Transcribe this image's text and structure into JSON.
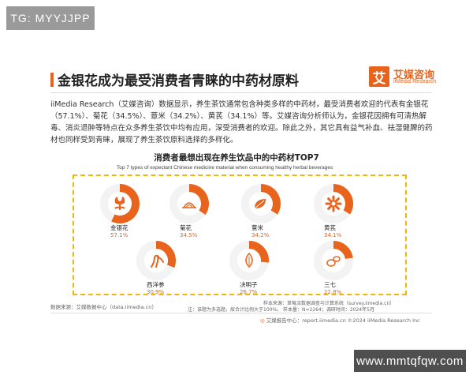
{
  "watermark_top": "TG: MYYJJPP",
  "watermark_bottom": "www.mmtqfqw.com",
  "title": "金银花成为最受消费者青睐的中药材原料",
  "logo": {
    "mark": "艾",
    "name_cn": "艾媒咨询",
    "name_en": "iiMedia Research"
  },
  "paragraph": "iiMedia Research（艾媒咨询）数据显示，养生茶饮通常包含种类多样的中药材，最受消费者欢迎的代表有金银花（57.1%）、菊花（34.5%）、薏米（34.2%）、黄芪（34.1%）等。艾媒咨询分析师认为，金银花因拥有可清热解毒、消炎退肿等特点在众多养生茶饮中均有应用，深受消费者的欢迎。除此之外，其它具有益气补血、祛湿健脾的药材也同样受到青睐，展现了养生茶饮原料选择的多样化。",
  "source_left": "数据来源：艾媒数据中心（data.iimedia.cn）",
  "source_right_1": "样本来源：草莓派数据调查与计算系统（survey.iimedia.cn）",
  "source_right_2": "注：该题为多选题，故合计比例大于100%。  样本量：N=2264；调研时间：2024年5月",
  "footer": {
    "label": "艾媒报告中心：report.iimedia.cn",
    "copyright": "©2024  iiMedia Research Inc"
  },
  "colors": {
    "accent": "#e8631b",
    "frame": "#f2b705",
    "track": "#f3f3f3"
  },
  "chart_data": {
    "type": "ring",
    "title": "消费者最想出现在养生饮品中的中药材TOP7",
    "subtitle": "Top 7 types of expectant Chinese medicine material when consuming healthy herbal beverages",
    "unit": "%",
    "items": [
      {
        "label": "金银花",
        "value": 57.1,
        "icon": "honeysuckle-flower-icon"
      },
      {
        "label": "菊花",
        "value": 34.5,
        "icon": "chrysanthemum-icon"
      },
      {
        "label": "薏米",
        "value": 34.2,
        "icon": "coix-seed-icon"
      },
      {
        "label": "黄芪",
        "value": 34.1,
        "icon": "astragalus-icon"
      },
      {
        "label": "西洋参",
        "value": 30.9,
        "icon": "ginseng-root-icon"
      },
      {
        "label": "决明子",
        "value": 26.7,
        "icon": "cassia-seed-icon"
      },
      {
        "label": "三七",
        "value": 22.8,
        "icon": "notoginseng-icon"
      }
    ]
  }
}
